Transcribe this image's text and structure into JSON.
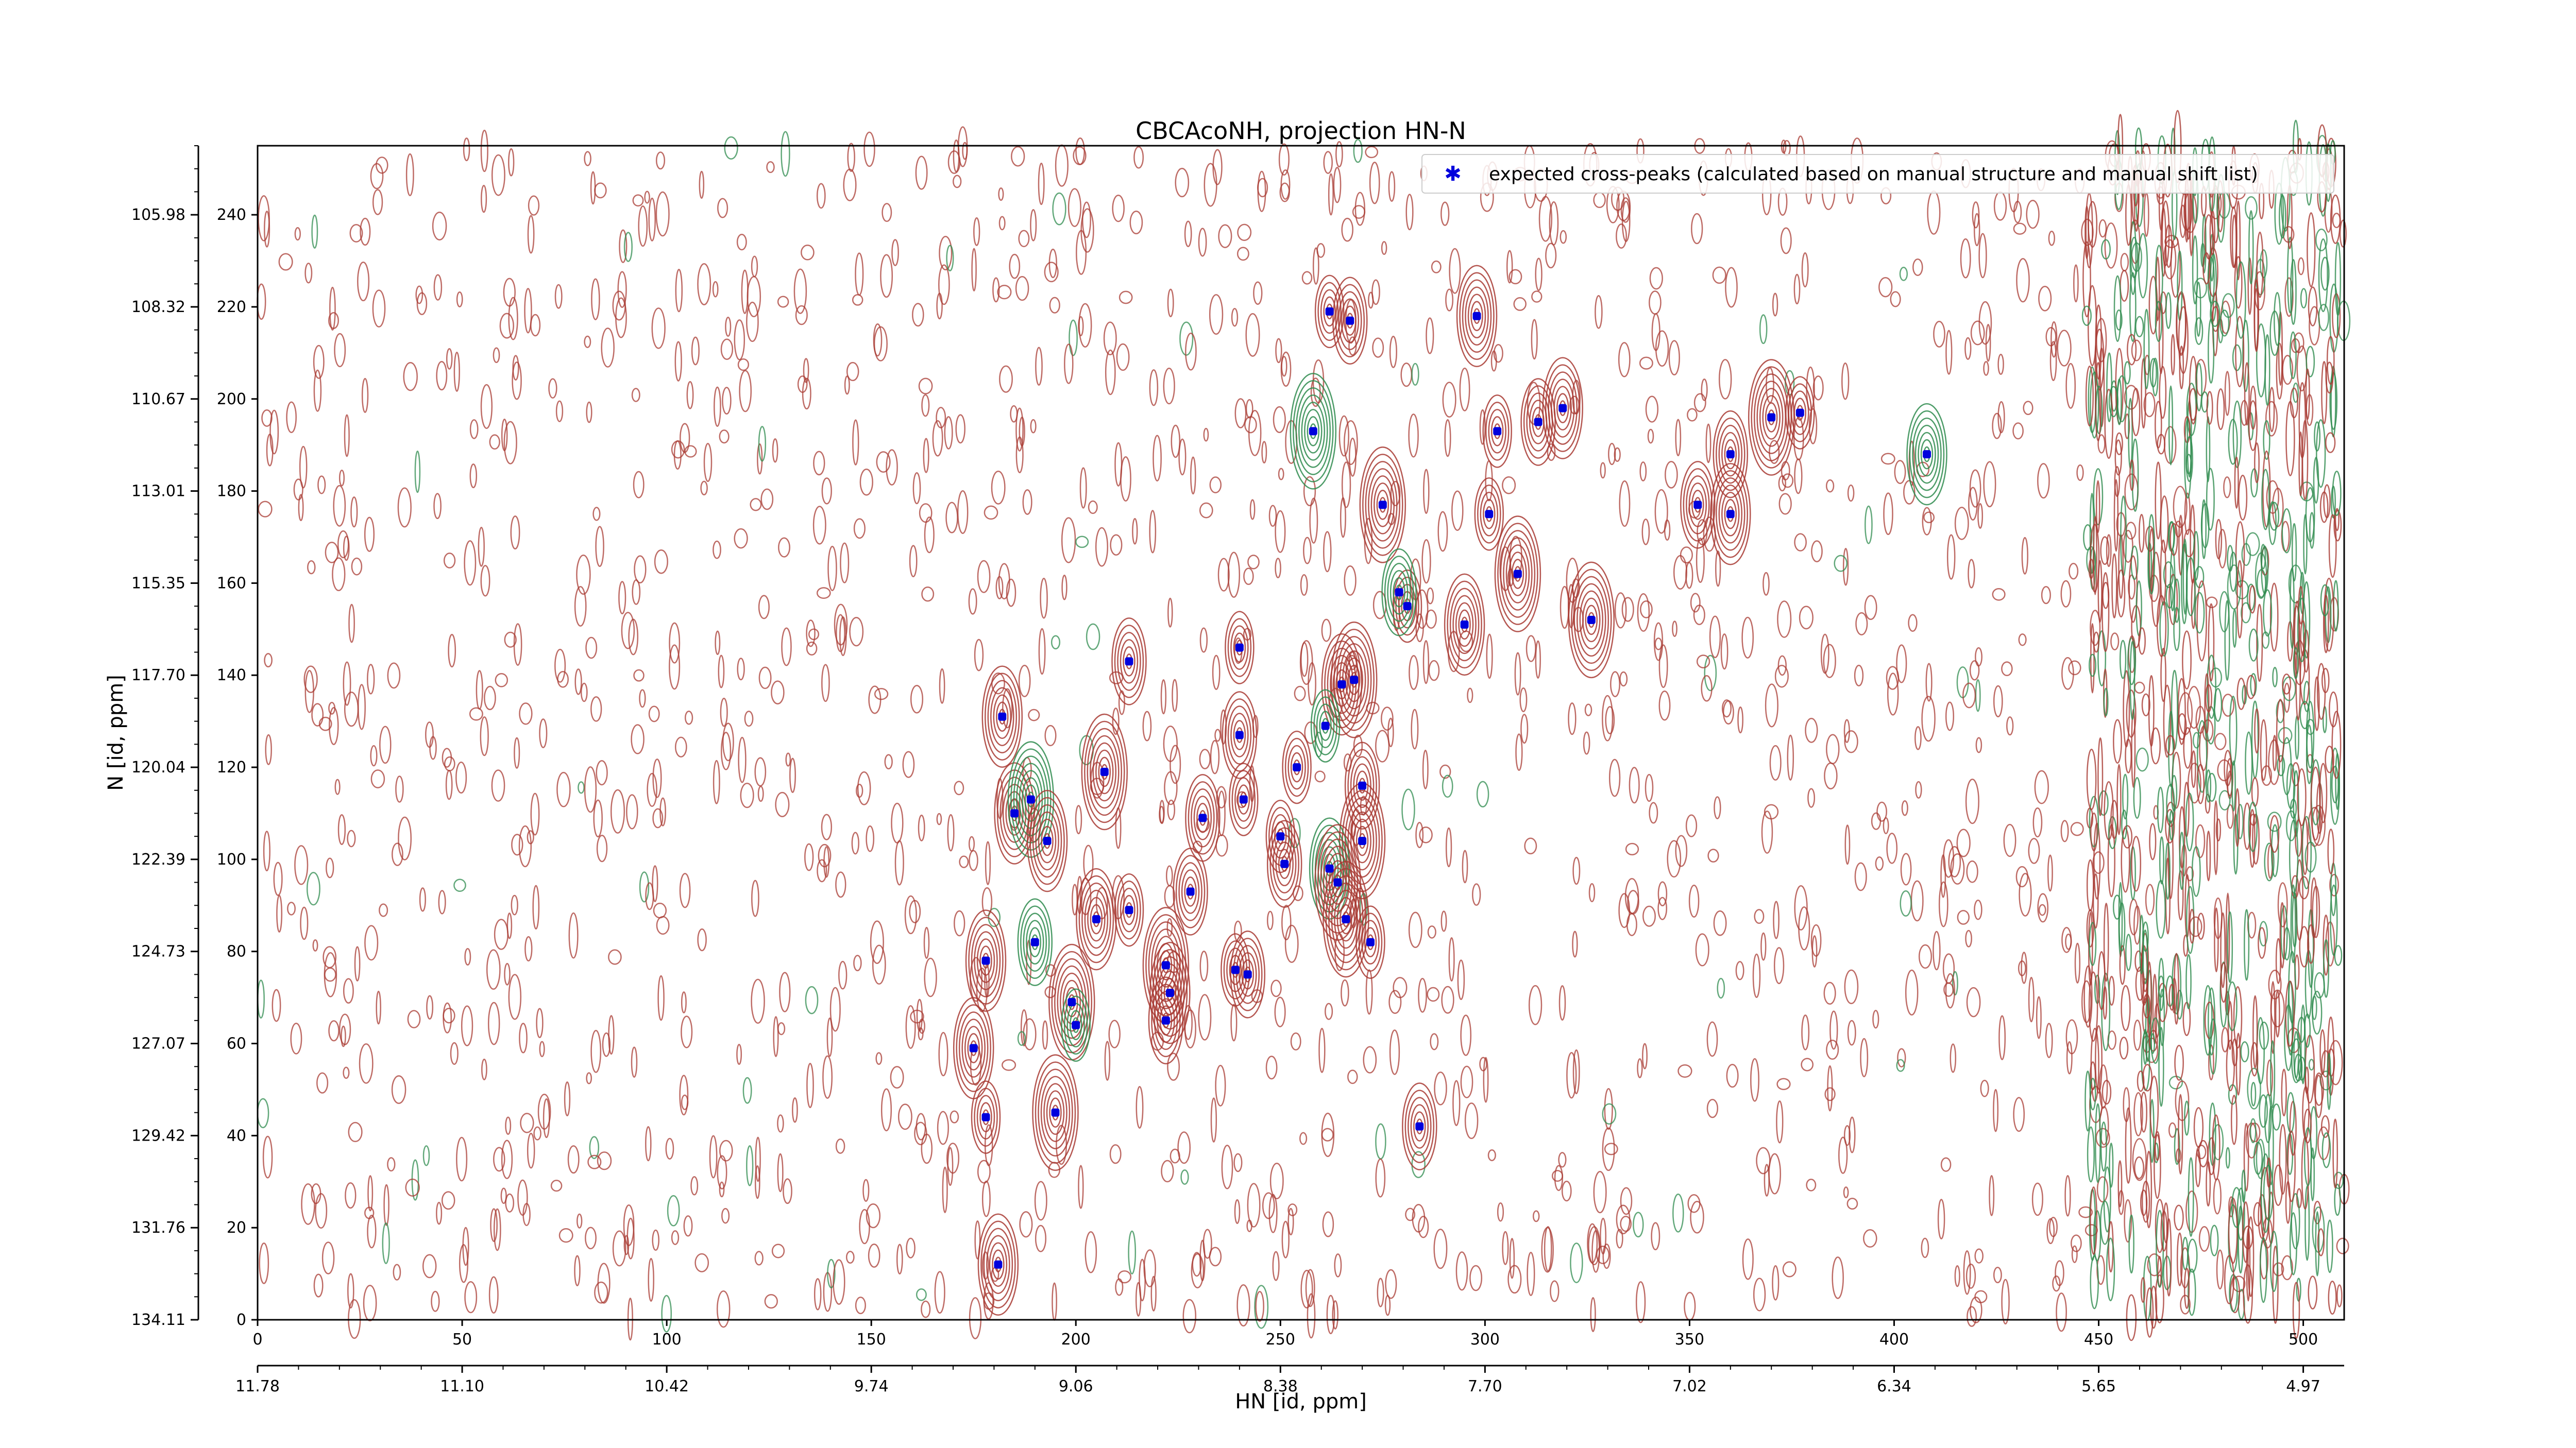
{
  "chart_data": {
    "type": "scatter",
    "title": "CBCAcoNH, projection HN-N",
    "xlabel": "HN [id, ppm]",
    "ylabel": "N [id, ppm]",
    "xlim": [
      0,
      510
    ],
    "ylim": [
      0,
      255
    ],
    "x_index_ticks": [
      "0",
      "50",
      "100",
      "150",
      "200",
      "250",
      "300",
      "350",
      "400",
      "450",
      "500"
    ],
    "x_ppm_ticks": [
      "11.78",
      "11.10",
      "10.42",
      "9.74",
      "9.06",
      "8.38",
      "7.70",
      "7.02",
      "6.34",
      "5.65",
      "4.97"
    ],
    "y_index_ticks": [
      "0",
      "20",
      "40",
      "60",
      "80",
      "100",
      "120",
      "140",
      "160",
      "180",
      "200",
      "220",
      "240"
    ],
    "y_ppm_ticks": [
      "134.11",
      "131.76",
      "129.42",
      "127.07",
      "124.73",
      "122.39",
      "120.04",
      "117.70",
      "115.35",
      "113.01",
      "110.67",
      "108.32",
      "105.98"
    ],
    "legend": {
      "position": "top-right",
      "label": "expected cross-peaks (calculated based on manual structure and manual shift list)"
    },
    "colors": {
      "marker": "#0000dd",
      "contour_positive": "#a83a32",
      "contour_negative": "#2e8b4e"
    },
    "series": [
      {
        "name": "expected cross-peaks (calculated based on manual structure and manual shift list)",
        "x": [
          262,
          267,
          298,
          258,
          303,
          313,
          319,
          370,
          377,
          360,
          408,
          275,
          301,
          352,
          360,
          308,
          281,
          279,
          295,
          326,
          240,
          213,
          265,
          268,
          261,
          240,
          182,
          207,
          254,
          270,
          185,
          189,
          241,
          231,
          193,
          270,
          250,
          251,
          262,
          264,
          213,
          228,
          205,
          266,
          272,
          190,
          178,
          222,
          239,
          242,
          223,
          199,
          200,
          222,
          175,
          195,
          178,
          284,
          181
        ],
        "y": [
          219,
          217,
          218,
          193,
          193,
          195,
          198,
          196,
          197,
          188,
          188,
          177,
          175,
          177,
          175,
          162,
          155,
          158,
          151,
          152,
          146,
          143,
          138,
          139,
          129,
          127,
          131,
          119,
          120,
          116,
          110,
          113,
          113,
          109,
          104,
          104,
          105,
          99,
          98,
          95,
          89,
          93,
          87,
          87,
          82,
          82,
          78,
          77,
          76,
          75,
          71,
          69,
          64,
          65,
          59,
          45,
          44,
          42,
          12
        ]
      }
    ]
  }
}
